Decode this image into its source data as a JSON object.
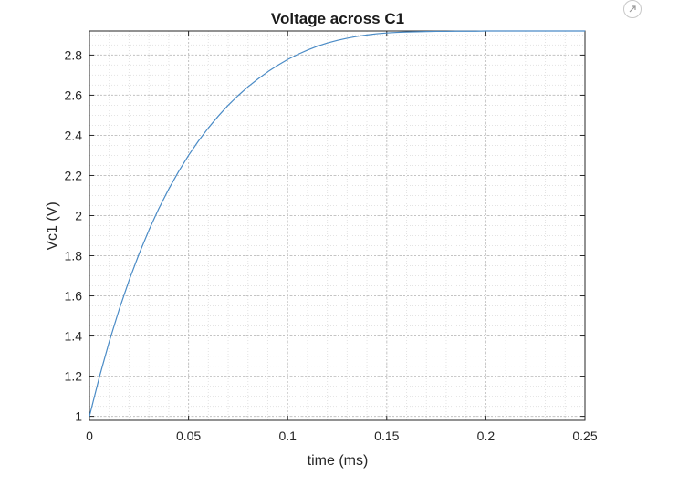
{
  "chart_data": {
    "type": "line",
    "title": "Voltage across C1",
    "xlabel": "time (ms)",
    "ylabel": "Vc1 (V)",
    "xlim": [
      0,
      0.25
    ],
    "ylim": [
      0.98,
      2.92
    ],
    "xticks": [
      0,
      0.05,
      0.1,
      0.15,
      0.2,
      0.25
    ],
    "xtick_labels": [
      "0",
      "0.05",
      "0.1",
      "0.15",
      "0.2",
      "0.25"
    ],
    "yticks": [
      1,
      1.2,
      1.4,
      1.6,
      1.8,
      2,
      2.2,
      2.4,
      2.6,
      2.8
    ],
    "ytick_labels": [
      "1",
      "1.2",
      "1.4",
      "1.6",
      "1.8",
      "2",
      "2.2",
      "2.4",
      "2.6",
      "2.8"
    ],
    "grid": true,
    "minor_grid": true,
    "series": [
      {
        "color": "#4a8bc6",
        "x": [
          0,
          0.005,
          0.01,
          0.015,
          0.02,
          0.025,
          0.03,
          0.035,
          0.04,
          0.045,
          0.05,
          0.055,
          0.06,
          0.065,
          0.07,
          0.075,
          0.08,
          0.085,
          0.09,
          0.095,
          0.1,
          0.105,
          0.11,
          0.115,
          0.12,
          0.125,
          0.13,
          0.135,
          0.14,
          0.145,
          0.15,
          0.155,
          0.16,
          0.165,
          0.17,
          0.175,
          0.18,
          0.185,
          0.19,
          0.195,
          0.2,
          0.21,
          0.22,
          0.23,
          0.24,
          0.25
        ],
        "y": [
          1.0,
          1.195,
          1.372,
          1.532,
          1.677,
          1.808,
          1.927,
          2.035,
          2.132,
          2.22,
          2.3,
          2.372,
          2.437,
          2.496,
          2.55,
          2.598,
          2.642,
          2.681,
          2.717,
          2.749,
          2.778,
          2.803,
          2.825,
          2.844,
          2.86,
          2.873,
          2.884,
          2.893,
          2.9,
          2.906,
          2.91,
          2.913,
          2.915,
          2.916,
          2.917,
          2.918,
          2.918,
          2.919,
          2.919,
          2.919,
          2.92,
          2.92,
          2.92,
          2.92,
          2.92,
          2.92
        ]
      }
    ]
  },
  "toolbar": {
    "export_icon": "export-arrow-icon"
  }
}
